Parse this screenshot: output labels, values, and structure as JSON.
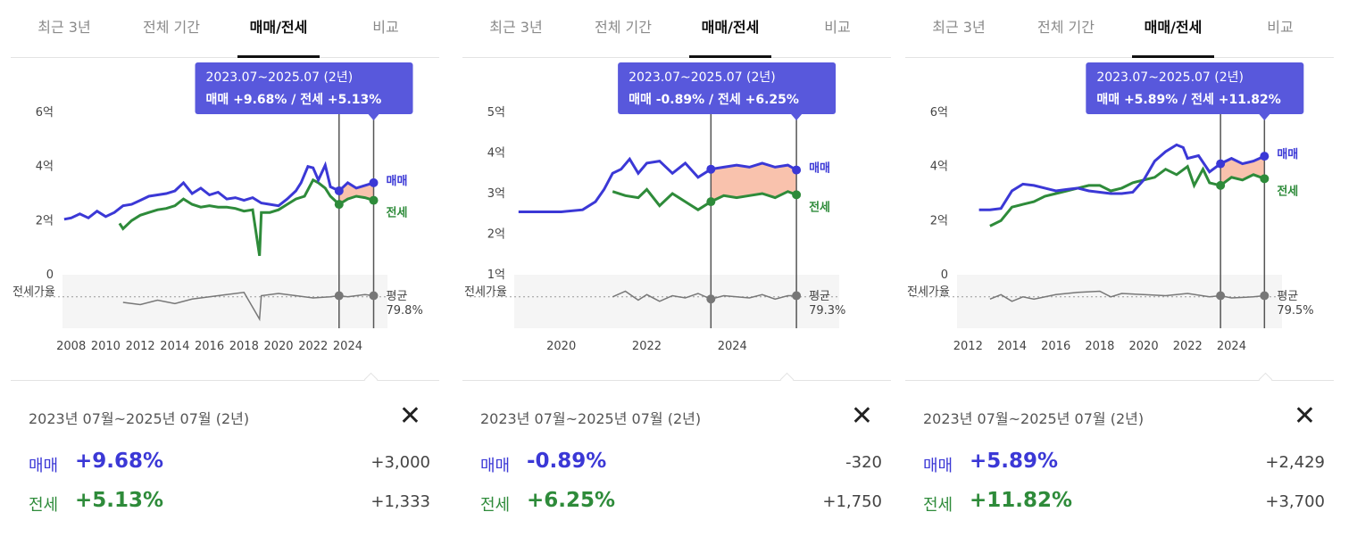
{
  "tabs": [
    "최근 3년",
    "전체 기간",
    "매매/전세",
    "비교"
  ],
  "colors": {
    "sale": "#3b38d6",
    "jeonse": "#2e8b3a",
    "ratio": "#777777",
    "tooltip": "#5858dc"
  },
  "sale_label": "매매",
  "jeonse_label": "전세",
  "ratio_label": "전세가율",
  "avg_label": "평균",
  "panels": [
    {
      "tooltip": {
        "period": "2023.07~2025.07 (2년)",
        "values": "매매 +9.68%  /  전세 +5.13%"
      },
      "period": "2023년 07월~2025년 07월 (2년)",
      "sale": {
        "label": "매매",
        "pct": "+9.68%",
        "amount": "+3,000"
      },
      "jeonse": {
        "label": "전세",
        "pct": "+5.13%",
        "amount": "+1,333"
      },
      "ratio_avg": "79.8%",
      "chart_data": {
        "type": "line",
        "title": "",
        "xlim": [
          2007.5,
          2026.3
        ],
        "ylim": [
          0,
          6
        ],
        "yticks": [
          {
            "v": 0,
            "label": "0"
          },
          {
            "v": 2,
            "label": "2억"
          },
          {
            "v": 4,
            "label": "4억"
          },
          {
            "v": 6,
            "label": "6억"
          }
        ],
        "xticks": [
          2008,
          2010,
          2012,
          2014,
          2016,
          2018,
          2020,
          2022,
          2024
        ],
        "xtick_labels": [
          "2008",
          "2010",
          "2012",
          "2014",
          "2016",
          "2018",
          "2020",
          "2022",
          "2024"
        ],
        "highlight": {
          "start": 2023.5,
          "end": 2025.5
        },
        "series": [
          {
            "name": "매매",
            "x": [
              2007.6,
              2008,
              2008.5,
              2009,
              2009.5,
              2010,
              2010.5,
              2011,
              2011.5,
              2012,
              2012.5,
              2013,
              2013.5,
              2014,
              2014.5,
              2015,
              2015.5,
              2016,
              2016.5,
              2017,
              2017.5,
              2018,
              2018.5,
              2019,
              2019.5,
              2020,
              2020.5,
              2021,
              2021.3,
              2021.7,
              2022,
              2022.3,
              2022.7,
              2023,
              2023.5,
              2024,
              2024.5,
              2025,
              2025.5
            ],
            "values": [
              2.05,
              2.1,
              2.25,
              2.1,
              2.35,
              2.15,
              2.3,
              2.55,
              2.6,
              2.75,
              2.9,
              2.95,
              3.0,
              3.1,
              3.4,
              3.0,
              3.2,
              2.95,
              3.05,
              2.8,
              2.85,
              2.75,
              2.85,
              2.65,
              2.6,
              2.55,
              2.8,
              3.1,
              3.4,
              4.0,
              3.95,
              3.5,
              4.05,
              3.25,
              3.1,
              3.4,
              3.2,
              3.3,
              3.4
            ]
          },
          {
            "name": "전세",
            "x": [
              2010.8,
              2011,
              2011.5,
              2012,
              2012.5,
              2013,
              2013.5,
              2014,
              2014.5,
              2015,
              2015.5,
              2016,
              2016.5,
              2017,
              2017.5,
              2018,
              2018.5,
              2018.9,
              2019,
              2019.5,
              2020,
              2020.5,
              2021,
              2021.5,
              2022,
              2022.3,
              2022.7,
              2023,
              2023.5,
              2024,
              2024.5,
              2025,
              2025.5
            ],
            "values": [
              1.9,
              1.7,
              2.0,
              2.2,
              2.3,
              2.4,
              2.45,
              2.55,
              2.8,
              2.6,
              2.5,
              2.55,
              2.5,
              2.5,
              2.45,
              2.35,
              2.4,
              0.7,
              2.3,
              2.3,
              2.4,
              2.6,
              2.8,
              2.9,
              3.5,
              3.4,
              3.2,
              2.9,
              2.6,
              2.8,
              2.9,
              2.85,
              2.75
            ]
          },
          {
            "name": "전세가율",
            "x": [
              2011,
              2012,
              2013,
              2014,
              2015,
              2016,
              2017,
              2018,
              2018.9,
              2019,
              2020,
              2021,
              2022,
              2023,
              2023.5,
              2024,
              2025,
              2025.5
            ],
            "values": [
              75,
              73,
              77,
              74,
              78,
              80,
              82,
              84,
              60,
              81,
              83,
              81,
              79,
              80,
              81,
              80,
              82,
              81
            ]
          }
        ]
      }
    },
    {
      "tooltip": {
        "period": "2023.07~2025.07 (2년)",
        "values": "매매 -0.89%  /  전세 +6.25%"
      },
      "period": "2023년 07월~2025년 07월 (2년)",
      "sale": {
        "label": "매매",
        "pct": "-0.89%",
        "amount": "-320"
      },
      "jeonse": {
        "label": "전세",
        "pct": "+6.25%",
        "amount": "+1,750"
      },
      "ratio_avg": "79.3%",
      "chart_data": {
        "type": "line",
        "title": "",
        "xlim": [
          2018.9,
          2026.5
        ],
        "ylim": [
          1,
          5
        ],
        "yticks": [
          {
            "v": 1,
            "label": "1억"
          },
          {
            "v": 2,
            "label": "2억"
          },
          {
            "v": 3,
            "label": "3억"
          },
          {
            "v": 4,
            "label": "4억"
          },
          {
            "v": 5,
            "label": "5억"
          }
        ],
        "xticks": [
          2020,
          2022,
          2024
        ],
        "xtick_labels": [
          "2020",
          "2022",
          "2024"
        ],
        "highlight": {
          "start": 2023.5,
          "end": 2025.5
        },
        "series": [
          {
            "name": "매매",
            "x": [
              2019,
              2019.5,
              2020,
              2020.5,
              2020.8,
              2021,
              2021.2,
              2021.4,
              2021.6,
              2021.8,
              2022,
              2022.3,
              2022.6,
              2022.9,
              2023.2,
              2023.5,
              2023.8,
              2024.1,
              2024.4,
              2024.7,
              2025,
              2025.3,
              2025.5
            ],
            "values": [
              2.55,
              2.55,
              2.55,
              2.6,
              2.8,
              3.1,
              3.5,
              3.6,
              3.85,
              3.5,
              3.75,
              3.8,
              3.5,
              3.75,
              3.4,
              3.6,
              3.65,
              3.7,
              3.65,
              3.75,
              3.65,
              3.7,
              3.58
            ]
          },
          {
            "name": "전세",
            "x": [
              2021.2,
              2021.5,
              2021.8,
              2022,
              2022.3,
              2022.6,
              2022.9,
              2023.2,
              2023.5,
              2023.8,
              2024.1,
              2024.4,
              2024.7,
              2025,
              2025.3,
              2025.5
            ],
            "values": [
              3.05,
              2.95,
              2.9,
              3.1,
              2.7,
              3.0,
              2.8,
              2.6,
              2.8,
              2.95,
              2.9,
              2.95,
              3.0,
              2.9,
              3.05,
              2.97
            ]
          },
          {
            "name": "전세가율",
            "x": [
              2021.2,
              2021.5,
              2021.8,
              2022,
              2022.3,
              2022.6,
              2022.9,
              2023.2,
              2023.5,
              2023.8,
              2024.1,
              2024.4,
              2024.7,
              2025,
              2025.3,
              2025.5
            ],
            "values": [
              80,
              85,
              77,
              82,
              76,
              81,
              79,
              83,
              78,
              81,
              80,
              79,
              82,
              78,
              81,
              81
            ]
          }
        ]
      }
    },
    {
      "tooltip": {
        "period": "2023.07~2025.07 (2년)",
        "values": "매매 +5.89%  /  전세 +11.82%"
      },
      "period": "2023년 07월~2025년 07월 (2년)",
      "sale": {
        "label": "매매",
        "pct": "+5.89%",
        "amount": "+2,429"
      },
      "jeonse": {
        "label": "전세",
        "pct": "+11.82%",
        "amount": "+3,700"
      },
      "ratio_avg": "79.5%",
      "chart_data": {
        "type": "line",
        "title": "",
        "xlim": [
          2011.5,
          2026.3
        ],
        "ylim": [
          0,
          6
        ],
        "yticks": [
          {
            "v": 0,
            "label": "0"
          },
          {
            "v": 2,
            "label": "2억"
          },
          {
            "v": 4,
            "label": "4억"
          },
          {
            "v": 6,
            "label": "6억"
          }
        ],
        "xticks": [
          2012,
          2014,
          2016,
          2018,
          2020,
          2022,
          2024
        ],
        "xtick_labels": [
          "2012",
          "2014",
          "2016",
          "2018",
          "2020",
          "2022",
          "2024"
        ],
        "highlight": {
          "start": 2023.5,
          "end": 2025.5
        },
        "series": [
          {
            "name": "매매",
            "x": [
              2012.5,
              2013,
              2013.5,
              2014,
              2014.5,
              2015,
              2015.5,
              2016,
              2016.5,
              2017,
              2017.5,
              2018,
              2018.5,
              2019,
              2019.5,
              2020,
              2020.5,
              2021,
              2021.5,
              2021.8,
              2022,
              2022.5,
              2023,
              2023.5,
              2024,
              2024.5,
              2025,
              2025.5
            ],
            "values": [
              2.4,
              2.4,
              2.45,
              3.1,
              3.35,
              3.3,
              3.2,
              3.1,
              3.15,
              3.2,
              3.1,
              3.05,
              3.0,
              3.0,
              3.05,
              3.5,
              4.2,
              4.55,
              4.8,
              4.7,
              4.3,
              4.4,
              3.8,
              4.1,
              4.3,
              4.1,
              4.2,
              4.38
            ]
          },
          {
            "name": "전세",
            "x": [
              2013,
              2013.5,
              2014,
              2014.5,
              2015,
              2015.5,
              2016,
              2016.5,
              2017,
              2017.5,
              2018,
              2018.5,
              2019,
              2019.5,
              2020,
              2020.5,
              2021,
              2021.5,
              2022,
              2022.3,
              2022.7,
              2023,
              2023.5,
              2024,
              2024.5,
              2025,
              2025.5
            ],
            "values": [
              1.8,
              2.0,
              2.5,
              2.6,
              2.7,
              2.9,
              3.0,
              3.1,
              3.2,
              3.3,
              3.3,
              3.1,
              3.2,
              3.4,
              3.5,
              3.6,
              3.9,
              3.7,
              4.0,
              3.3,
              3.9,
              3.4,
              3.3,
              3.6,
              3.5,
              3.7,
              3.55
            ]
          },
          {
            "name": "전세가율",
            "x": [
              2013,
              2013.5,
              2014,
              2014.5,
              2015,
              2016,
              2017,
              2018,
              2018.5,
              2019,
              2020,
              2021,
              2022,
              2023,
              2023.5,
              2024,
              2025,
              2025.5
            ],
            "values": [
              78,
              82,
              76,
              80,
              78,
              82,
              84,
              85,
              80,
              83,
              82,
              81,
              83,
              80,
              81,
              79,
              80,
              81
            ]
          }
        ]
      }
    }
  ]
}
